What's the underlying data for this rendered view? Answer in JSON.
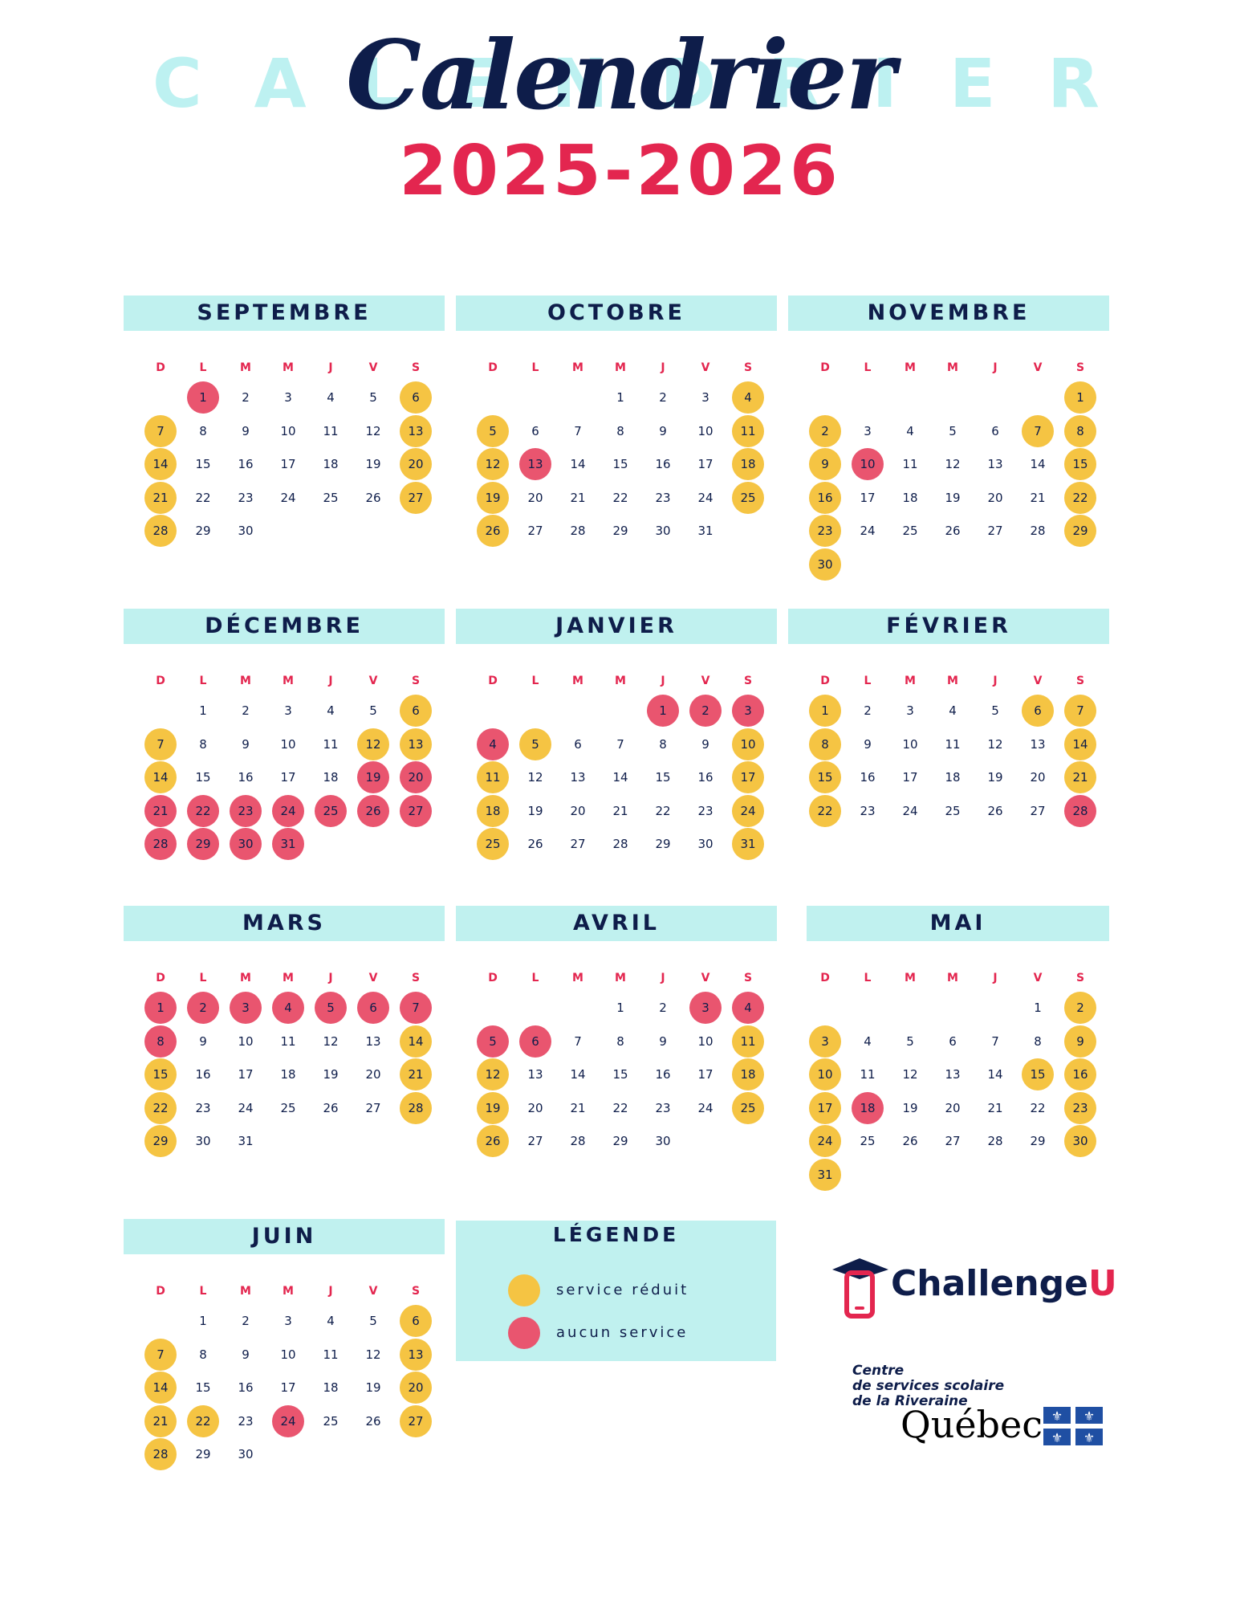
{
  "title": {
    "background_word": "CALENDRIER",
    "script": "Calendrier",
    "years": "2025-2026"
  },
  "weekdays": [
    "D",
    "L",
    "M",
    "M",
    "J",
    "V",
    "S"
  ],
  "months": [
    {
      "name": "SEPTEMBRE",
      "start": 1,
      "days": 30,
      "reduit": [
        6,
        7,
        13,
        14,
        20,
        21,
        27,
        28
      ],
      "aucun": [
        1
      ]
    },
    {
      "name": "OCTOBRE",
      "start": 3,
      "days": 31,
      "reduit": [
        4,
        5,
        11,
        12,
        18,
        19,
        25,
        26
      ],
      "aucun": [
        13
      ]
    },
    {
      "name": "NOVEMBRE",
      "start": 6,
      "days": 30,
      "reduit": [
        1,
        2,
        7,
        8,
        9,
        15,
        16,
        22,
        23,
        29,
        30
      ],
      "aucun": [
        10
      ]
    },
    {
      "name": "DÉCEMBRE",
      "start": 1,
      "days": 31,
      "reduit": [
        6,
        7,
        12,
        13,
        14
      ],
      "aucun": [
        19,
        20,
        21,
        22,
        23,
        24,
        25,
        26,
        27,
        28,
        29,
        30,
        31
      ]
    },
    {
      "name": "JANVIER",
      "start": 4,
      "days": 31,
      "reduit": [
        5,
        10,
        11,
        17,
        18,
        24,
        25,
        31
      ],
      "aucun": [
        1,
        2,
        3,
        4
      ]
    },
    {
      "name": "FÉVRIER",
      "start": 0,
      "days": 28,
      "reduit": [
        1,
        6,
        7,
        8,
        14,
        15,
        21,
        22
      ],
      "aucun": [
        28
      ]
    },
    {
      "name": "MARS",
      "start": 0,
      "days": 31,
      "reduit": [
        14,
        15,
        21,
        22,
        28,
        29
      ],
      "aucun": [
        1,
        2,
        3,
        4,
        5,
        6,
        7,
        8
      ]
    },
    {
      "name": "AVRIL",
      "start": 3,
      "days": 30,
      "reduit": [
        11,
        12,
        18,
        19,
        25,
        26
      ],
      "aucun": [
        3,
        4,
        5,
        6
      ]
    },
    {
      "name": "MAI",
      "start": 5,
      "days": 31,
      "reduit": [
        2,
        3,
        9,
        10,
        15,
        16,
        17,
        23,
        24,
        30,
        31
      ],
      "aucun": [
        18
      ]
    },
    {
      "name": "JUIN",
      "start": 1,
      "days": 30,
      "reduit": [
        6,
        7,
        13,
        14,
        20,
        21,
        22,
        27,
        28
      ],
      "aucun": [
        24
      ]
    }
  ],
  "legend": {
    "title": "LÉGENDE",
    "reduit_label": "service réduit",
    "aucun_label": "aucun service"
  },
  "logos": {
    "challengeu_main": "Challenge",
    "challengeu_accent": "U",
    "csrs_line1": "Centre",
    "csrs_line2": "de services scolaire",
    "csrs_line3": "de la Riveraine",
    "quebec": "Québec"
  },
  "colors": {
    "navy": "#0e1d4a",
    "red": "#e3264f",
    "header_bg": "#c0f1ef",
    "reduit": "#f5c443",
    "aucun": "#e9556f"
  },
  "icons": [
    "graduation-cap-icon",
    "phone-icon",
    "fleur-de-lis-flag-icon"
  ]
}
